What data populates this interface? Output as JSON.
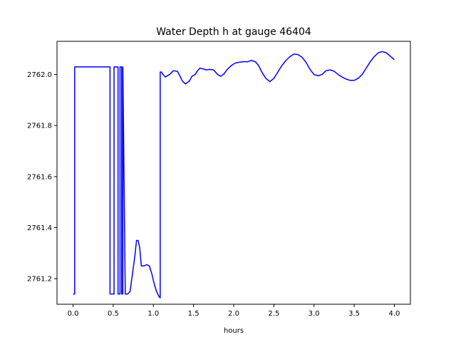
{
  "chart_data": {
    "type": "line",
    "title": "Water Depth h at gauge 46404",
    "xlabel": "hours",
    "ylabel": "",
    "xlim": [
      -0.2,
      4.2
    ],
    "ylim": [
      2761.1,
      2762.13
    ],
    "xticks": [
      0.0,
      0.5,
      1.0,
      1.5,
      2.0,
      2.5,
      3.0,
      3.5,
      4.0
    ],
    "xtick_labels": [
      "0.0",
      "0.5",
      "1.0",
      "1.5",
      "2.0",
      "2.5",
      "3.0",
      "3.5",
      "4.0"
    ],
    "yticks": [
      2761.2,
      2761.4,
      2761.6,
      2761.8,
      2762.0
    ],
    "ytick_labels": [
      "2761.2",
      "2761.4",
      "2761.6",
      "2761.8",
      "2762.0"
    ],
    "grid": false,
    "series": [
      {
        "color": "#0000ff",
        "x": [
          0.0,
          0.02,
          0.02,
          0.46,
          0.46,
          0.51,
          0.51,
          0.56,
          0.56,
          0.585,
          0.585,
          0.605,
          0.605,
          0.62,
          0.62,
          0.65,
          0.68,
          0.71,
          0.74,
          0.77,
          0.79,
          0.81,
          0.83,
          0.85,
          0.88,
          0.92,
          0.95,
          0.98,
          1.01,
          1.04,
          1.07,
          1.085,
          1.085,
          1.1,
          1.12,
          1.15,
          1.2,
          1.25,
          1.3,
          1.33,
          1.36,
          1.4,
          1.45,
          1.48,
          1.52,
          1.55,
          1.58,
          1.62,
          1.66,
          1.7,
          1.75,
          1.8,
          1.84,
          1.88,
          1.92,
          1.97,
          2.02,
          2.07,
          2.12,
          2.17,
          2.22,
          2.27,
          2.31,
          2.35,
          2.4,
          2.45,
          2.5,
          2.55,
          2.6,
          2.65,
          2.7,
          2.75,
          2.8,
          2.85,
          2.9,
          2.95,
          3.0,
          3.05,
          3.1,
          3.15,
          3.2,
          3.25,
          3.3,
          3.35,
          3.4,
          3.45,
          3.5,
          3.55,
          3.6,
          3.65,
          3.7,
          3.75,
          3.8,
          3.85,
          3.9,
          3.95,
          4.0
        ],
        "y": [
          2761.14,
          2761.14,
          2762.03,
          2762.03,
          2761.14,
          2761.14,
          2762.03,
          2762.03,
          2761.14,
          2761.14,
          2762.03,
          2762.03,
          2761.14,
          2761.14,
          2762.03,
          2761.14,
          2761.14,
          2761.15,
          2761.22,
          2761.29,
          2761.35,
          2761.35,
          2761.32,
          2761.25,
          2761.25,
          2761.255,
          2761.25,
          2761.22,
          2761.18,
          2761.15,
          2761.13,
          2761.125,
          2762.01,
          2762.01,
          2762.0,
          2761.99,
          2762.0,
          2762.015,
          2762.012,
          2761.995,
          2761.975,
          2761.963,
          2761.975,
          2761.993,
          2762.0,
          2762.015,
          2762.025,
          2762.022,
          2762.018,
          2762.02,
          2762.018,
          2762.0,
          2761.993,
          2762.003,
          2762.02,
          2762.035,
          2762.045,
          2762.048,
          2762.05,
          2762.05,
          2762.055,
          2762.05,
          2762.035,
          2762.01,
          2761.985,
          2761.972,
          2761.985,
          2762.01,
          2762.035,
          2762.055,
          2762.07,
          2762.08,
          2762.078,
          2762.068,
          2762.048,
          2762.02,
          2762.0,
          2761.995,
          2762.0,
          2762.015,
          2762.018,
          2762.013,
          2762.0,
          2761.99,
          2761.982,
          2761.977,
          2761.977,
          2761.985,
          2762.0,
          2762.025,
          2762.05,
          2762.07,
          2762.085,
          2762.09,
          2762.085,
          2762.072,
          2762.058
        ]
      }
    ]
  }
}
